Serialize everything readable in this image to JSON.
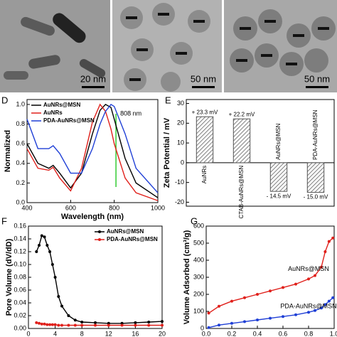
{
  "images": [
    {
      "scale": "20 nm"
    },
    {
      "scale": "50 nm"
    },
    {
      "scale": "50 nm"
    }
  ],
  "chart_data": [
    {
      "type": "line",
      "panel": "D",
      "xlabel": "Wavelength (nm)",
      "ylabel": "Normalized",
      "x": [
        400,
        450,
        500,
        520,
        550,
        600,
        650,
        700,
        735,
        760,
        785,
        800,
        850,
        900,
        1000
      ],
      "series": [
        {
          "name": "AuNRs@MSN",
          "color": "#000000",
          "values": [
            0.6,
            0.4,
            0.35,
            0.38,
            0.3,
            0.15,
            0.3,
            0.7,
            0.94,
            1.0,
            0.97,
            0.85,
            0.45,
            0.2,
            0.05
          ]
        },
        {
          "name": "AuNRs",
          "color": "#e0201b",
          "values": [
            0.55,
            0.35,
            0.33,
            0.36,
            0.25,
            0.12,
            0.35,
            0.82,
            1.0,
            0.93,
            0.75,
            0.6,
            0.25,
            0.1,
            0.02
          ]
        },
        {
          "name": "PDA-AuNRs@MSN",
          "color": "#1f3fd6",
          "values": [
            0.85,
            0.55,
            0.55,
            0.58,
            0.5,
            0.3,
            0.3,
            0.55,
            0.8,
            0.93,
            1.0,
            0.98,
            0.7,
            0.35,
            0.1
          ]
        }
      ],
      "annotation": {
        "text": "808 nm",
        "x": 808,
        "color": "#33cc33"
      },
      "xlim": [
        400,
        1000
      ],
      "xticks": [
        400,
        600,
        800,
        1000
      ],
      "ylim": [
        0,
        1.05
      ],
      "yticks": [
        {
          "value": 0,
          "label": "0.0"
        },
        {
          "value": 0.2,
          "label": "0.2"
        },
        {
          "value": 0.4,
          "label": "0.4"
        },
        {
          "value": 0.6,
          "label": "0.6"
        },
        {
          "value": 0.8,
          "label": "0.8"
        },
        {
          "value": 1.0,
          "label": "1.0"
        }
      ],
      "legend": "top-left",
      "markers": false
    },
    {
      "type": "bar",
      "panel": "E",
      "ylabel": "Zeta Potential / mV",
      "categories": [
        "AuNRs",
        "CTAB-AuNRs@MSN",
        "AuNRs@MSN",
        "PDA-AuNRs@MSN"
      ],
      "values": [
        23.3,
        22.2,
        -14.5,
        -15.0
      ],
      "value_labels": [
        "+ 23.3 mV",
        "+ 22.2 mV",
        "- 14.5 mV",
        "- 15.0 mV"
      ],
      "color": "#555555",
      "ylim": [
        -22,
        32
      ],
      "yticks": [
        -20,
        -10,
        0,
        10,
        20,
        30
      ]
    },
    {
      "type": "line",
      "panel": "F",
      "ylabel": "Pore Volume (dV/dD)",
      "x": [
        1.2,
        1.6,
        2,
        2.4,
        2.8,
        3.2,
        3.6,
        4,
        4.5,
        5,
        6,
        7,
        8,
        10,
        12,
        14,
        16,
        18,
        20
      ],
      "series": [
        {
          "name": "AuNRs@MSN",
          "color": "#000000",
          "values": [
            0.12,
            0.13,
            0.145,
            0.143,
            0.13,
            0.12,
            0.1,
            0.08,
            0.05,
            0.035,
            0.02,
            0.013,
            0.01,
            0.009,
            0.008,
            0.008,
            0.009,
            0.01,
            0.011
          ]
        },
        {
          "name": "PDA-AuNRs@MSN",
          "color": "#e0201b",
          "values": [
            0.009,
            0.008,
            0.007,
            0.007,
            0.006,
            0.006,
            0.006,
            0.006,
            0.005,
            0.005,
            0.005,
            0.005,
            0.005,
            0.005,
            0.005,
            0.005,
            0.005,
            0.005,
            0.005
          ]
        }
      ],
      "xlim": [
        0,
        20
      ],
      "xticks": [
        0,
        4,
        8,
        12,
        16,
        20
      ],
      "ylim": [
        0,
        0.16
      ],
      "yticks": [
        {
          "value": 0,
          "label": "0.00"
        },
        {
          "value": 0.02,
          "label": "0.02"
        },
        {
          "value": 0.04,
          "label": "0.04"
        },
        {
          "value": 0.06,
          "label": "0.06"
        },
        {
          "value": 0.08,
          "label": "0.08"
        },
        {
          "value": 0.1,
          "label": "0.10"
        },
        {
          "value": 0.12,
          "label": "0.12"
        },
        {
          "value": 0.14,
          "label": "0.14"
        },
        {
          "value": 0.16,
          "label": "0.16"
        }
      ],
      "legend": "top-right",
      "markers": true
    },
    {
      "type": "line",
      "panel": "G",
      "ylabel": "Volume Adsorbed (cm³/g)",
      "x": [
        0.02,
        0.1,
        0.2,
        0.3,
        0.4,
        0.5,
        0.6,
        0.7,
        0.8,
        0.85,
        0.9,
        0.93,
        0.96,
        0.99
      ],
      "series": [
        {
          "name": "AuNRs@MSN",
          "color": "#e0201b",
          "values": [
            90,
            130,
            160,
            180,
            200,
            220,
            240,
            260,
            290,
            310,
            360,
            450,
            510,
            530
          ]
        },
        {
          "name": "PDA-AuNRs@MSN",
          "color": "#1f3fd6",
          "values": [
            5,
            20,
            30,
            40,
            50,
            60,
            70,
            80,
            95,
            105,
            120,
            140,
            160,
            180
          ]
        }
      ],
      "xlim": [
        0,
        1
      ],
      "xticks": [
        {
          "value": 0,
          "label": "0.0"
        },
        {
          "value": 0.2,
          "label": "0.2"
        },
        {
          "value": 0.4,
          "label": "0.4"
        },
        {
          "value": 0.6,
          "label": "0.6"
        },
        {
          "value": 0.8,
          "label": "0.8"
        },
        {
          "value": 1,
          "label": "1.0"
        }
      ],
      "ylim": [
        0,
        600
      ],
      "yticks": [
        0,
        100,
        200,
        300,
        400,
        500,
        600
      ],
      "legend": "inline",
      "markers": true
    }
  ]
}
